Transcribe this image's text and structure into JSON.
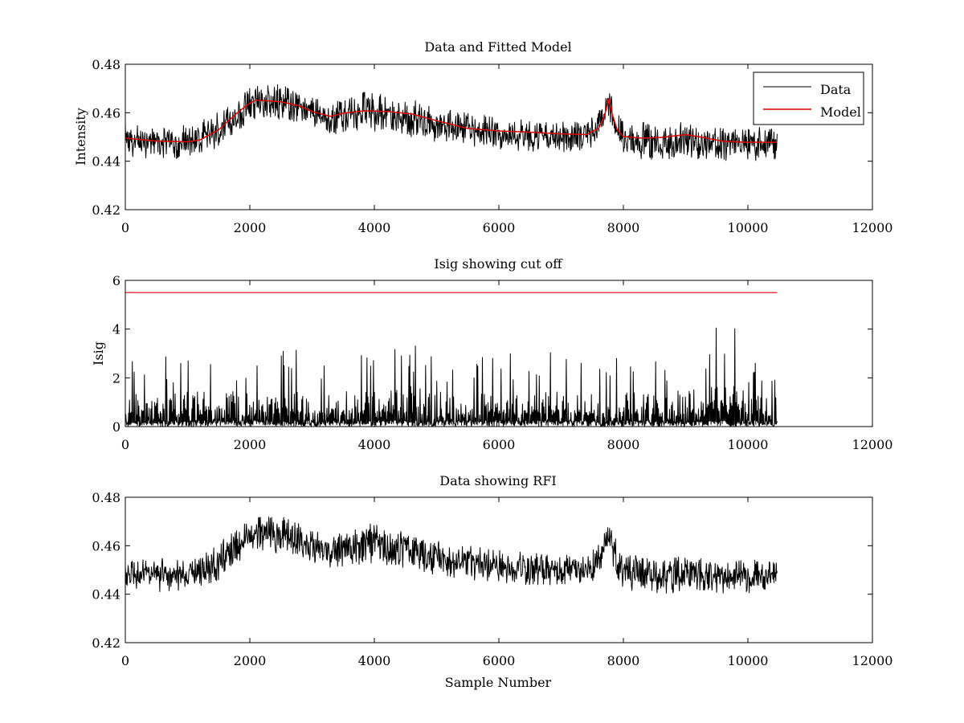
{
  "chart_data": [
    {
      "type": "line",
      "title": "Data and Fitted Model",
      "xlabel": "",
      "ylabel": "Intensity",
      "xlim": [
        0,
        12000
      ],
      "ylim": [
        0.42,
        0.48
      ],
      "xticks": [
        0,
        2000,
        4000,
        6000,
        8000,
        10000,
        12000
      ],
      "yticks": [
        0.42,
        0.44,
        0.46,
        0.48
      ],
      "legend": {
        "position": "top-right",
        "entries": [
          "Data",
          "Model"
        ]
      },
      "series": [
        {
          "name": "Data",
          "color": "#000000",
          "kind": "noisy-band",
          "x": [
            0,
            500,
            1000,
            1200,
            1500,
            1800,
            2000,
            2200,
            2500,
            2800,
            3000,
            3300,
            3600,
            3850,
            4200,
            4600,
            5000,
            5500,
            6000,
            6500,
            7000,
            7400,
            7600,
            7700,
            7760,
            7820,
            7900,
            8000,
            8300,
            8600,
            9000,
            9300,
            9600,
            10000,
            10470
          ],
          "upper": [
            0.456,
            0.455,
            0.455,
            0.456,
            0.462,
            0.468,
            0.472,
            0.473,
            0.473,
            0.471,
            0.467,
            0.465,
            0.467,
            0.471,
            0.469,
            0.466,
            0.463,
            0.461,
            0.459,
            0.458,
            0.457,
            0.458,
            0.462,
            0.467,
            0.472,
            0.467,
            0.461,
            0.458,
            0.457,
            0.456,
            0.457,
            0.456,
            0.455,
            0.455,
            0.455
          ],
          "lower": [
            0.441,
            0.44,
            0.44,
            0.441,
            0.445,
            0.451,
            0.456,
            0.457,
            0.456,
            0.455,
            0.452,
            0.45,
            0.451,
            0.451,
            0.451,
            0.449,
            0.447,
            0.445,
            0.444,
            0.443,
            0.443,
            0.443,
            0.446,
            0.452,
            0.458,
            0.452,
            0.445,
            0.441,
            0.44,
            0.439,
            0.44,
            0.44,
            0.439,
            0.439,
            0.44
          ]
        },
        {
          "name": "Model",
          "color": "#e00000",
          "x": [
            0,
            500,
            1000,
            1200,
            1500,
            1800,
            2000,
            2100,
            2500,
            2800,
            3000,
            3300,
            3500,
            3850,
            4200,
            4600,
            5000,
            5500,
            6000,
            6500,
            7000,
            7400,
            7600,
            7700,
            7760,
            7820,
            7900,
            8000,
            8300,
            8600,
            9000,
            9300,
            9600,
            10000,
            10470
          ],
          "y": [
            0.4495,
            0.4483,
            0.448,
            0.4488,
            0.453,
            0.46,
            0.464,
            0.4652,
            0.4645,
            0.4628,
            0.4605,
            0.4585,
            0.4598,
            0.4608,
            0.4605,
            0.4595,
            0.4567,
            0.4535,
            0.4525,
            0.452,
            0.4513,
            0.451,
            0.4535,
            0.459,
            0.466,
            0.4595,
            0.453,
            0.4502,
            0.4495,
            0.4498,
            0.451,
            0.4497,
            0.4482,
            0.4478,
            0.4478
          ]
        }
      ]
    },
    {
      "type": "line",
      "title": "Isig showing cut off",
      "xlabel": "",
      "ylabel": "Isig",
      "xlim": [
        0,
        12000
      ],
      "ylim": [
        0,
        6
      ],
      "xticks": [
        0,
        2000,
        4000,
        6000,
        8000,
        10000,
        12000
      ],
      "yticks": [
        0,
        2,
        4,
        6
      ],
      "series": [
        {
          "color": "#000000",
          "kind": "noisy-band",
          "x": [
            0,
            1000,
            2000,
            3000,
            4000,
            4700,
            5000,
            6000,
            7000,
            8000,
            9000,
            9700,
            10000,
            10470
          ],
          "upper": [
            3.0,
            3.0,
            3.1,
            3.2,
            3.0,
            3.6,
            3.0,
            3.0,
            3.1,
            3.0,
            3.1,
            4.5,
            3.0,
            2.5
          ],
          "lower": [
            0,
            0,
            0,
            0,
            0,
            0,
            0,
            0,
            0,
            0,
            0,
            0,
            0,
            0
          ]
        },
        {
          "color": "#e00000",
          "x": [
            0,
            10470
          ],
          "y": [
            5.5,
            5.5
          ]
        }
      ]
    },
    {
      "type": "line",
      "title": "Data showing RFI",
      "xlabel": "Sample Number",
      "ylabel": "",
      "xlim": [
        0,
        12000
      ],
      "ylim": [
        0.42,
        0.48
      ],
      "xticks": [
        0,
        2000,
        4000,
        6000,
        8000,
        10000,
        12000
      ],
      "yticks": [
        0.42,
        0.44,
        0.46,
        0.48
      ],
      "series": [
        {
          "color": "#000000",
          "kind": "noisy-band",
          "x": [
            0,
            500,
            1000,
            1200,
            1500,
            1800,
            2000,
            2200,
            2500,
            2800,
            3000,
            3300,
            3600,
            3850,
            4200,
            4600,
            5000,
            5500,
            6000,
            6500,
            7000,
            7400,
            7600,
            7700,
            7760,
            7820,
            7900,
            8000,
            8300,
            8600,
            9000,
            9300,
            9600,
            10000,
            10470
          ],
          "upper": [
            0.456,
            0.455,
            0.455,
            0.456,
            0.462,
            0.468,
            0.472,
            0.473,
            0.473,
            0.471,
            0.467,
            0.465,
            0.467,
            0.471,
            0.469,
            0.466,
            0.463,
            0.461,
            0.459,
            0.458,
            0.457,
            0.458,
            0.462,
            0.467,
            0.472,
            0.467,
            0.461,
            0.458,
            0.457,
            0.456,
            0.457,
            0.456,
            0.455,
            0.455,
            0.455
          ],
          "lower": [
            0.441,
            0.44,
            0.44,
            0.441,
            0.445,
            0.451,
            0.456,
            0.457,
            0.456,
            0.455,
            0.452,
            0.45,
            0.451,
            0.451,
            0.451,
            0.449,
            0.447,
            0.445,
            0.444,
            0.443,
            0.443,
            0.443,
            0.446,
            0.452,
            0.458,
            0.452,
            0.445,
            0.441,
            0.44,
            0.439,
            0.44,
            0.44,
            0.439,
            0.439,
            0.44
          ]
        }
      ]
    }
  ]
}
